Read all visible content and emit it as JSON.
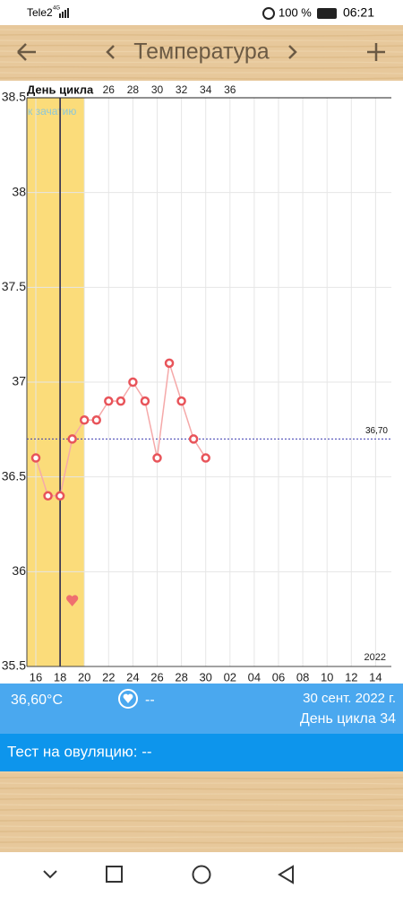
{
  "status_bar": {
    "carrier": "Tele2",
    "network": "4G",
    "battery": "100 %",
    "time": "06:21"
  },
  "header": {
    "title": "Температура"
  },
  "chart_data": {
    "type": "line",
    "x_label": "День цикла",
    "categories": [
      "16",
      null,
      "18",
      null,
      "20",
      null,
      "22",
      null,
      "24",
      null,
      "26",
      null,
      "28",
      null,
      "30",
      null,
      "02",
      null,
      "04",
      null,
      "06",
      null,
      "08",
      null,
      "10",
      null,
      "12",
      null,
      "14"
    ],
    "cycle_days": [
      null,
      null,
      null,
      null,
      null,
      null,
      "26",
      null,
      "28",
      null,
      "30",
      null,
      "32",
      null,
      "34",
      null,
      "36",
      null,
      null,
      null,
      null,
      null,
      null,
      null,
      null,
      null,
      null,
      null,
      null
    ],
    "series": [
      {
        "color": "#e8545a",
        "values": [
          36.6,
          36.4,
          36.4,
          36.7,
          36.8,
          36.8,
          36.9,
          36.9,
          37.0,
          36.9,
          36.6,
          37.1,
          36.9,
          36.7,
          36.6,
          null,
          null,
          null,
          null,
          null,
          null,
          null,
          null,
          null,
          null,
          null,
          null,
          null,
          null
        ]
      }
    ],
    "ylim": [
      35.5,
      38.5
    ],
    "yticks": [
      38.5,
      38,
      37.5,
      37,
      36.5,
      36,
      35.5
    ],
    "grid": true,
    "reference_line": {
      "value": 36.7,
      "label": "36,70"
    },
    "annotations": {
      "fertile": "к зачатию",
      "year": "2022"
    }
  },
  "info": {
    "temperature": "36,60°C",
    "intercourse": "--",
    "date": "30 сент. 2022 г.",
    "cycle_day": "День цикла 34",
    "ovulation_test": "Тест на овуляцию: --"
  }
}
